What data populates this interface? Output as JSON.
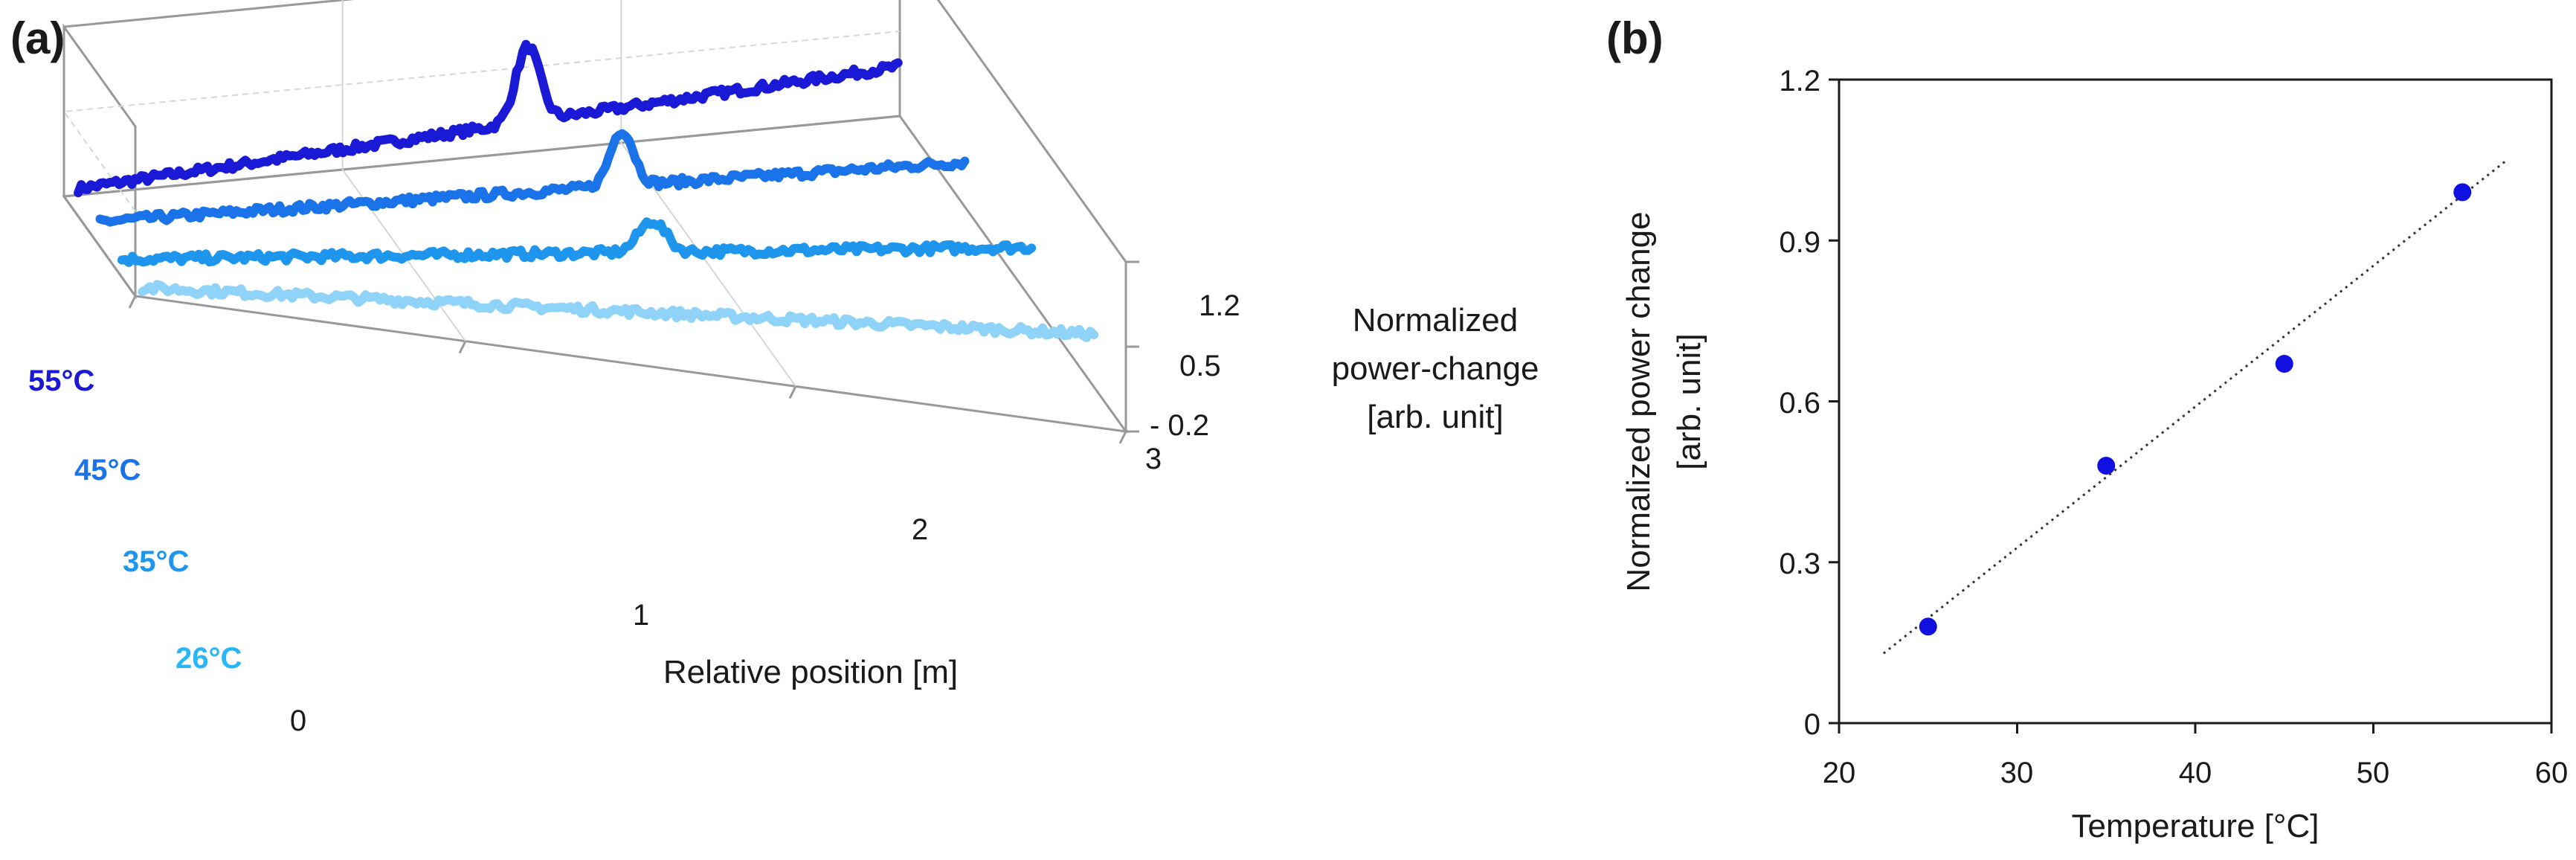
{
  "colors": {
    "c55": "#1a1ad6",
    "c45": "#1a73e8",
    "c35": "#1e96ee",
    "c26": "#8fd3f8",
    "t26": "#29b6f6",
    "point": "#1010e0",
    "frame": "#999999",
    "grid": "#d6d6d6"
  },
  "chart_data": [
    {
      "panel_label": "(a)",
      "type": "line",
      "projection": "3d",
      "xlabel": "Relative position [m]",
      "x_ticks": [
        "0",
        "1",
        "2",
        "3"
      ],
      "xlim": [
        0,
        3
      ],
      "zlabel_lines": [
        "Normalized",
        "power-change",
        "[arb. unit]"
      ],
      "z_ticks": [
        "1.2",
        "0.5",
        "- 0.2"
      ],
      "zlim": [
        -0.2,
        1.2
      ],
      "series": [
        {
          "name": "55°C",
          "color_key": "c55",
          "label_color_key": "c55",
          "base": [
            0.1,
            0.14,
            0.18,
            0.22,
            0.26,
            0.3,
            0.34,
            0.38,
            0.42,
            0.46,
            0.5,
            0.54,
            0.58,
            0.62
          ],
          "peak": {
            "x": 1.62,
            "height": 0.62,
            "width": 0.06
          }
        },
        {
          "name": "45°C",
          "color_key": "c45",
          "label_color_key": "c45",
          "base": [
            0.08,
            0.12,
            0.16,
            0.2,
            0.24,
            0.28,
            0.32,
            0.36,
            0.4,
            0.44,
            0.48,
            0.52,
            0.56,
            0.6
          ],
          "peak": {
            "x": 1.78,
            "height": 0.46,
            "width": 0.055
          }
        },
        {
          "name": "35°C",
          "color_key": "c35",
          "label_color_key": "c35",
          "base": [
            0.02,
            0.07,
            0.12,
            0.17,
            0.22,
            0.27,
            0.32,
            0.37,
            0.42,
            0.47,
            0.52,
            0.57,
            0.62,
            0.67
          ],
          "peak": {
            "x": 1.72,
            "height": 0.26,
            "width": 0.06
          }
        },
        {
          "name": "26°C",
          "color_key": "c26",
          "label_color_key": "t26",
          "base": [
            0.02,
            0.07,
            0.12,
            0.17,
            0.22,
            0.27,
            0.32,
            0.37,
            0.42,
            0.47,
            0.52,
            0.57,
            0.62,
            0.67
          ],
          "peak": null
        }
      ]
    },
    {
      "panel_label": "(b)",
      "type": "scatter",
      "xlabel": "Temperature [°C]",
      "ylabel_lines": [
        "Normalized power change",
        "[arb. unit]"
      ],
      "xlim": [
        20,
        60
      ],
      "ylim": [
        0,
        1.2
      ],
      "x_ticks": [
        "20",
        "30",
        "40",
        "50",
        "60"
      ],
      "y_ticks": [
        "0",
        "0.3",
        "0.6",
        "0.9",
        "1.2"
      ],
      "x": [
        25,
        35,
        45,
        55
      ],
      "y": [
        0.18,
        0.48,
        0.67,
        0.99
      ],
      "trendline": {
        "style": "dotted",
        "x": [
          22.5,
          57.5
        ],
        "y": [
          0.13,
          1.05
        ]
      }
    }
  ]
}
